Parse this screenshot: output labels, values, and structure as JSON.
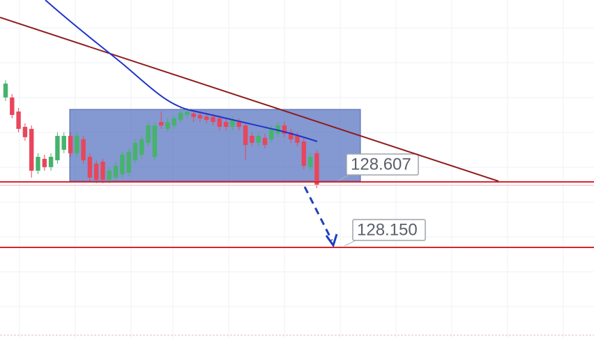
{
  "chart_data": {
    "type": "candlestick",
    "ylim": [
      127.518,
      129.876
    ],
    "up_color": "#45b36b",
    "down_color": "#e8465b",
    "level_color": "#d7262b",
    "levels": [
      {
        "value": 128.607,
        "label": "128.607"
      },
      {
        "value": 128.15,
        "label": "128.150"
      }
    ],
    "ohlc": [
      [
        129.196,
        129.317,
        129.171,
        129.293
      ],
      [
        129.196,
        129.22,
        129.05,
        129.074
      ],
      [
        129.098,
        129.123,
        128.953,
        128.977
      ],
      [
        128.991,
        129.016,
        128.894,
        128.919
      ],
      [
        128.977,
        129.001,
        128.637,
        128.685
      ],
      [
        128.685,
        128.807,
        128.661,
        128.782
      ],
      [
        128.768,
        128.797,
        128.685,
        128.71
      ],
      [
        128.71,
        128.807,
        128.685,
        128.782
      ],
      [
        128.758,
        128.953,
        128.734,
        128.928
      ],
      [
        128.831,
        128.953,
        128.807,
        128.928
      ],
      [
        128.928,
        128.953,
        128.782,
        128.807
      ],
      [
        128.807,
        128.953,
        128.782,
        128.928
      ],
      [
        128.904,
        128.928,
        128.734,
        128.758
      ],
      [
        128.782,
        128.807,
        128.612,
        128.637
      ],
      [
        128.734,
        128.758,
        128.598,
        128.622
      ],
      [
        128.748,
        128.768,
        128.598,
        128.622
      ],
      [
        128.622,
        128.71,
        128.598,
        128.685
      ],
      [
        128.637,
        128.748,
        128.612,
        128.719
      ],
      [
        128.661,
        128.817,
        128.637,
        128.797
      ],
      [
        128.671,
        128.841,
        128.646,
        128.817
      ],
      [
        128.758,
        128.904,
        128.734,
        128.88
      ],
      [
        128.797,
        128.928,
        128.768,
        128.904
      ],
      [
        128.88,
        129.025,
        128.855,
        129.001
      ],
      [
        128.782,
        129.025,
        128.758,
        129.001
      ],
      [
        129.025,
        129.098,
        128.977,
        129.001
      ],
      [
        128.977,
        129.05,
        128.953,
        129.025
      ],
      [
        129.001,
        129.074,
        128.977,
        129.05
      ],
      [
        129.04,
        129.123,
        129.016,
        129.089
      ],
      [
        129.074,
        129.123,
        129.05,
        129.098
      ],
      [
        129.084,
        129.098,
        129.025,
        129.06
      ],
      [
        129.074,
        129.098,
        129.025,
        129.05
      ],
      [
        129.064,
        129.089,
        129.016,
        129.04
      ],
      [
        129.06,
        129.084,
        129.001,
        129.025
      ],
      [
        129.05,
        129.074,
        128.967,
        128.991
      ],
      [
        129.025,
        129.05,
        128.967,
        128.991
      ],
      [
        128.991,
        129.064,
        128.967,
        129.04
      ],
      [
        129.025,
        129.05,
        128.967,
        128.991
      ],
      [
        129.001,
        129.025,
        128.758,
        128.865
      ],
      [
        128.928,
        128.953,
        128.855,
        128.88
      ],
      [
        128.88,
        128.953,
        128.855,
        128.928
      ],
      [
        128.914,
        128.943,
        128.841,
        128.865
      ],
      [
        128.904,
        129.001,
        128.88,
        128.977
      ],
      [
        128.943,
        129.025,
        128.919,
        129.001
      ],
      [
        129.001,
        129.025,
        128.919,
        128.943
      ],
      [
        128.953,
        128.977,
        128.88,
        128.904
      ],
      [
        128.928,
        128.953,
        128.855,
        128.88
      ],
      [
        128.889,
        128.914,
        128.695,
        128.719
      ],
      [
        128.71,
        128.807,
        128.685,
        128.782
      ],
      [
        128.807,
        128.831,
        128.564,
        128.588
      ]
    ]
  }
}
